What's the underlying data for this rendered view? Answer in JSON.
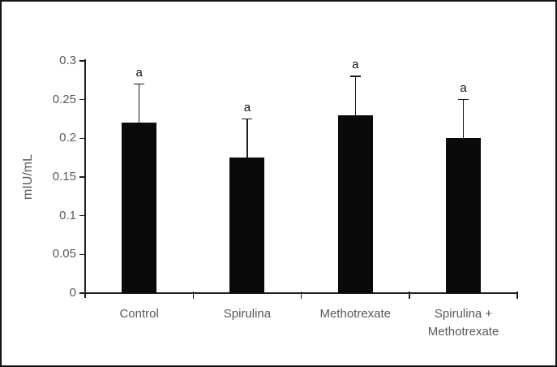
{
  "chart_data": {
    "type": "bar",
    "title": "",
    "xlabel": "",
    "ylabel": "mIU/mL",
    "ylim": [
      0,
      0.3
    ],
    "ytick_step": 0.05,
    "ytick_labels": [
      "0",
      "0.05",
      "0.1",
      "0.15",
      "0.2",
      "0.25",
      "0.3"
    ],
    "categories": [
      "Control",
      "Spirulina",
      "Methotrexate",
      "Spirulina + Methotrexate"
    ],
    "values": [
      0.22,
      0.175,
      0.23,
      0.2
    ],
    "errors": [
      0.05,
      0.05,
      0.05,
      0.05
    ],
    "error_direction": "plus-only",
    "bar_annotations": [
      "a",
      "a",
      "a",
      "a"
    ],
    "legend": false,
    "grid": false,
    "colors": {
      "bar": "#0a0a0a",
      "axis": "#1f1f1f",
      "error_bar": "#1a1a1a",
      "tick_label": "#595959",
      "annotation": "#111111",
      "frame_border": "#141414",
      "background": "#ffffff"
    }
  }
}
